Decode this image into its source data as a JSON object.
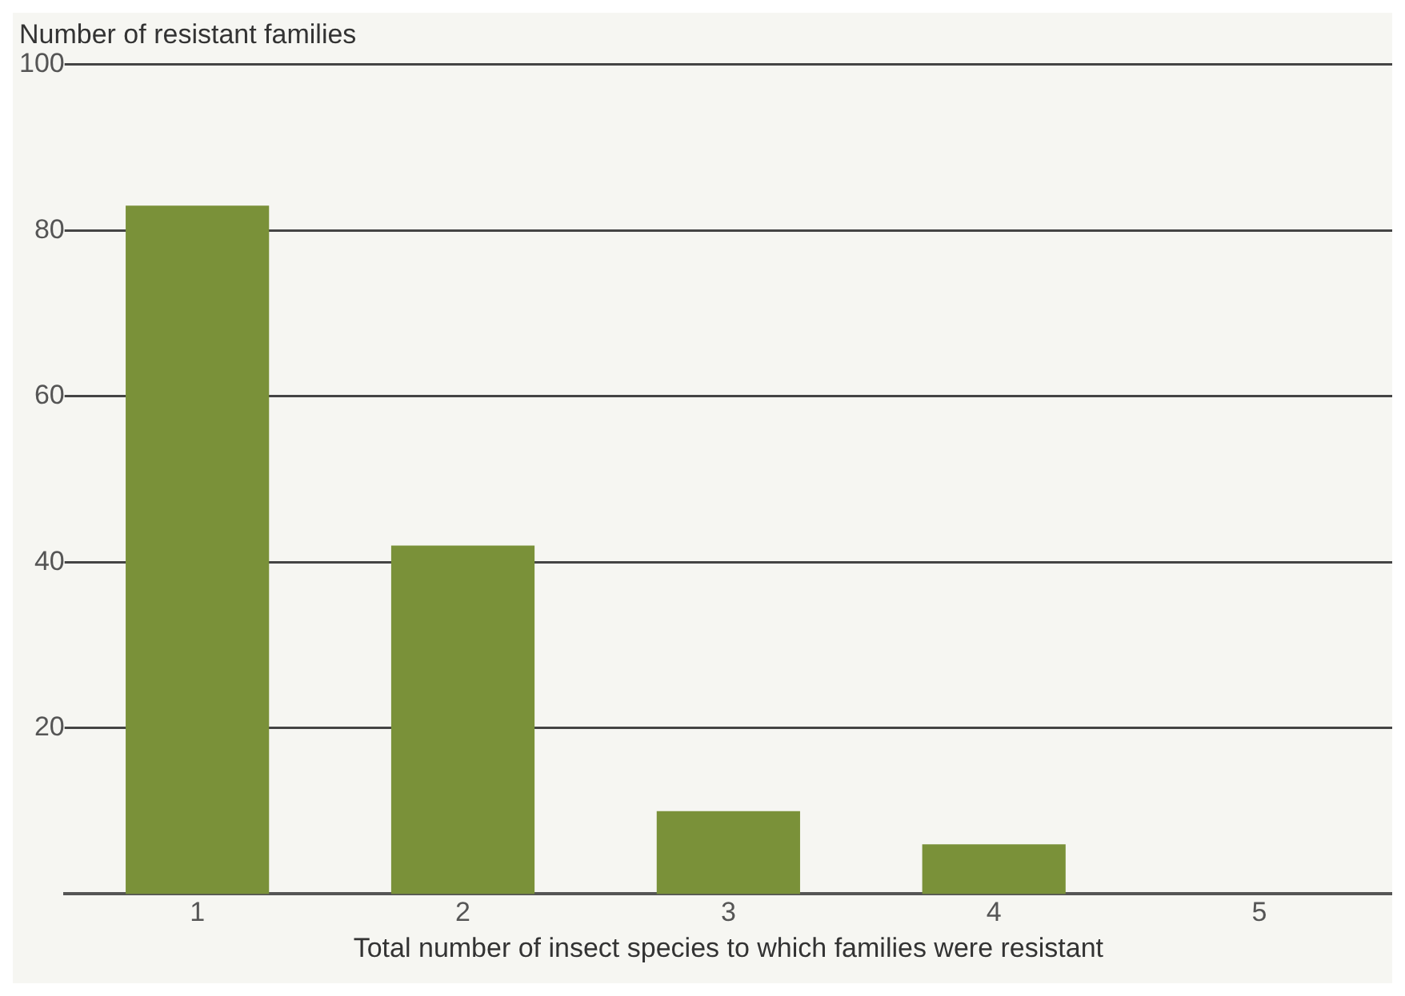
{
  "chart_data": {
    "type": "bar",
    "ylabel": "Number of resistant families",
    "xlabel": "Total number of insect species to which families were resistant",
    "categories": [
      "1",
      "2",
      "3",
      "4",
      "5"
    ],
    "values": [
      83,
      42,
      10,
      6,
      0
    ],
    "color": "#7a9139",
    "ylim": [
      0,
      100
    ],
    "yticks": [
      20,
      40,
      60,
      80,
      100
    ],
    "grid": "y"
  }
}
